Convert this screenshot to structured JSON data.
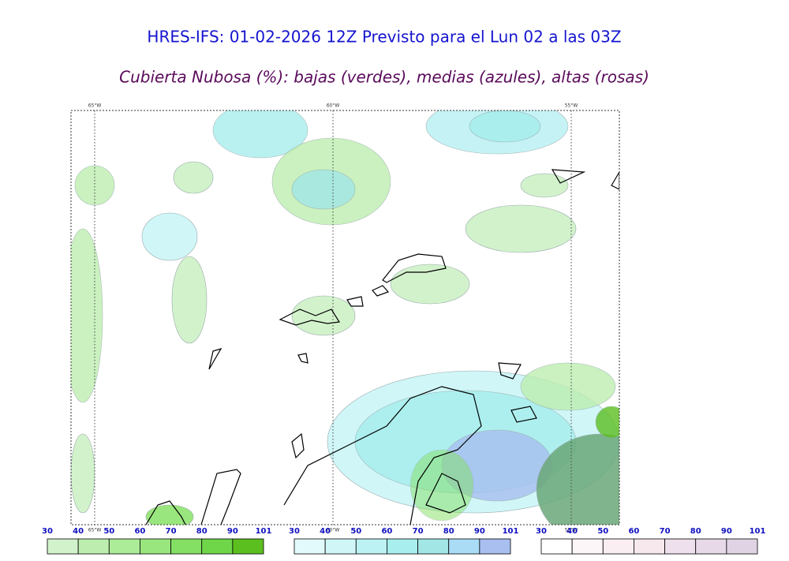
{
  "header": {
    "title": "HRES-IFS: 01-02-2026 12Z Previsto para el Lun 02 a las 03Z",
    "subtitle": "Cubierta Nubosa (%): bajas (verdes), medias (azules), altas (rosas)"
  },
  "map": {
    "lon_labels_top": [
      "65°W",
      "60°W",
      "55°W"
    ],
    "lon_labels_bottom": [
      "65°W",
      "60°W",
      "55°W"
    ]
  },
  "legends": [
    {
      "name": "bajas",
      "ticks": [
        "30",
        "40",
        "50",
        "60",
        "70",
        "80",
        "90",
        "101"
      ],
      "colors": [
        "#d2f2cc",
        "#bdeeb0",
        "#aceb98",
        "#9ae67e",
        "#84e064",
        "#6fd64a",
        "#5cbf20"
      ]
    },
    {
      "name": "medias",
      "ticks": [
        "30",
        "40",
        "50",
        "60",
        "70",
        "80",
        "90",
        "101"
      ],
      "colors": [
        "#e2fafc",
        "#d0f6f8",
        "#bcf2f4",
        "#a8eeee",
        "#a2e6e6",
        "#aadcf6",
        "#a8bff0"
      ]
    },
    {
      "name": "altas",
      "ticks": [
        "30",
        "40",
        "50",
        "60",
        "70",
        "80",
        "90",
        "101"
      ],
      "colors": [
        "#ffffff",
        "#fcf6f8",
        "#faeef2",
        "#f7e8ee",
        "#eee0ec",
        "#e7d9e7",
        "#e0d4e4"
      ]
    }
  ]
}
